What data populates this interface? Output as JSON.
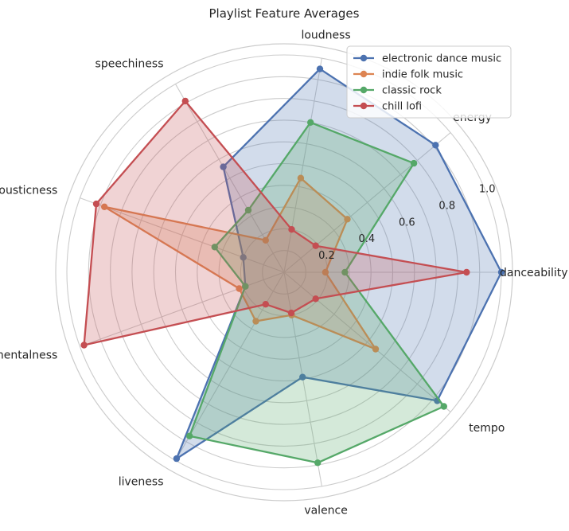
{
  "chart_data": {
    "type": "radar",
    "title": "Playlist Feature Averages",
    "axes": [
      "danceability",
      "energy",
      "loudness",
      "speechiness",
      "acousticness",
      "instrumentalness",
      "liveness",
      "valence",
      "tempo"
    ],
    "rlim": [
      0,
      1.0
    ],
    "radial_ticks": [
      0.2,
      0.4,
      0.6,
      0.8,
      1.0
    ],
    "radial_tick_labels": [
      "0.2",
      "0.4",
      "0.6",
      "0.8",
      "1.0"
    ],
    "grid": true,
    "legend_position": "top-right",
    "series": [
      {
        "name": "electronic dance music",
        "color": "#4c72b0",
        "values": [
          1.0,
          0.91,
          0.95,
          0.56,
          0.2,
          0.19,
          0.99,
          0.49,
          0.92
        ]
      },
      {
        "name": "indie folk music",
        "color": "#dd8452",
        "values": [
          0.19,
          0.38,
          0.44,
          0.17,
          0.88,
          0.22,
          0.26,
          0.2,
          0.55
        ]
      },
      {
        "name": "classic rock",
        "color": "#55a868",
        "values": [
          0.28,
          0.78,
          0.7,
          0.33,
          0.34,
          0.19,
          0.87,
          0.89,
          0.96
        ]
      },
      {
        "name": "chill lofi",
        "color": "#c44e52",
        "values": [
          0.84,
          0.19,
          0.2,
          0.91,
          0.92,
          0.98,
          0.17,
          0.19,
          0.19
        ]
      }
    ]
  }
}
